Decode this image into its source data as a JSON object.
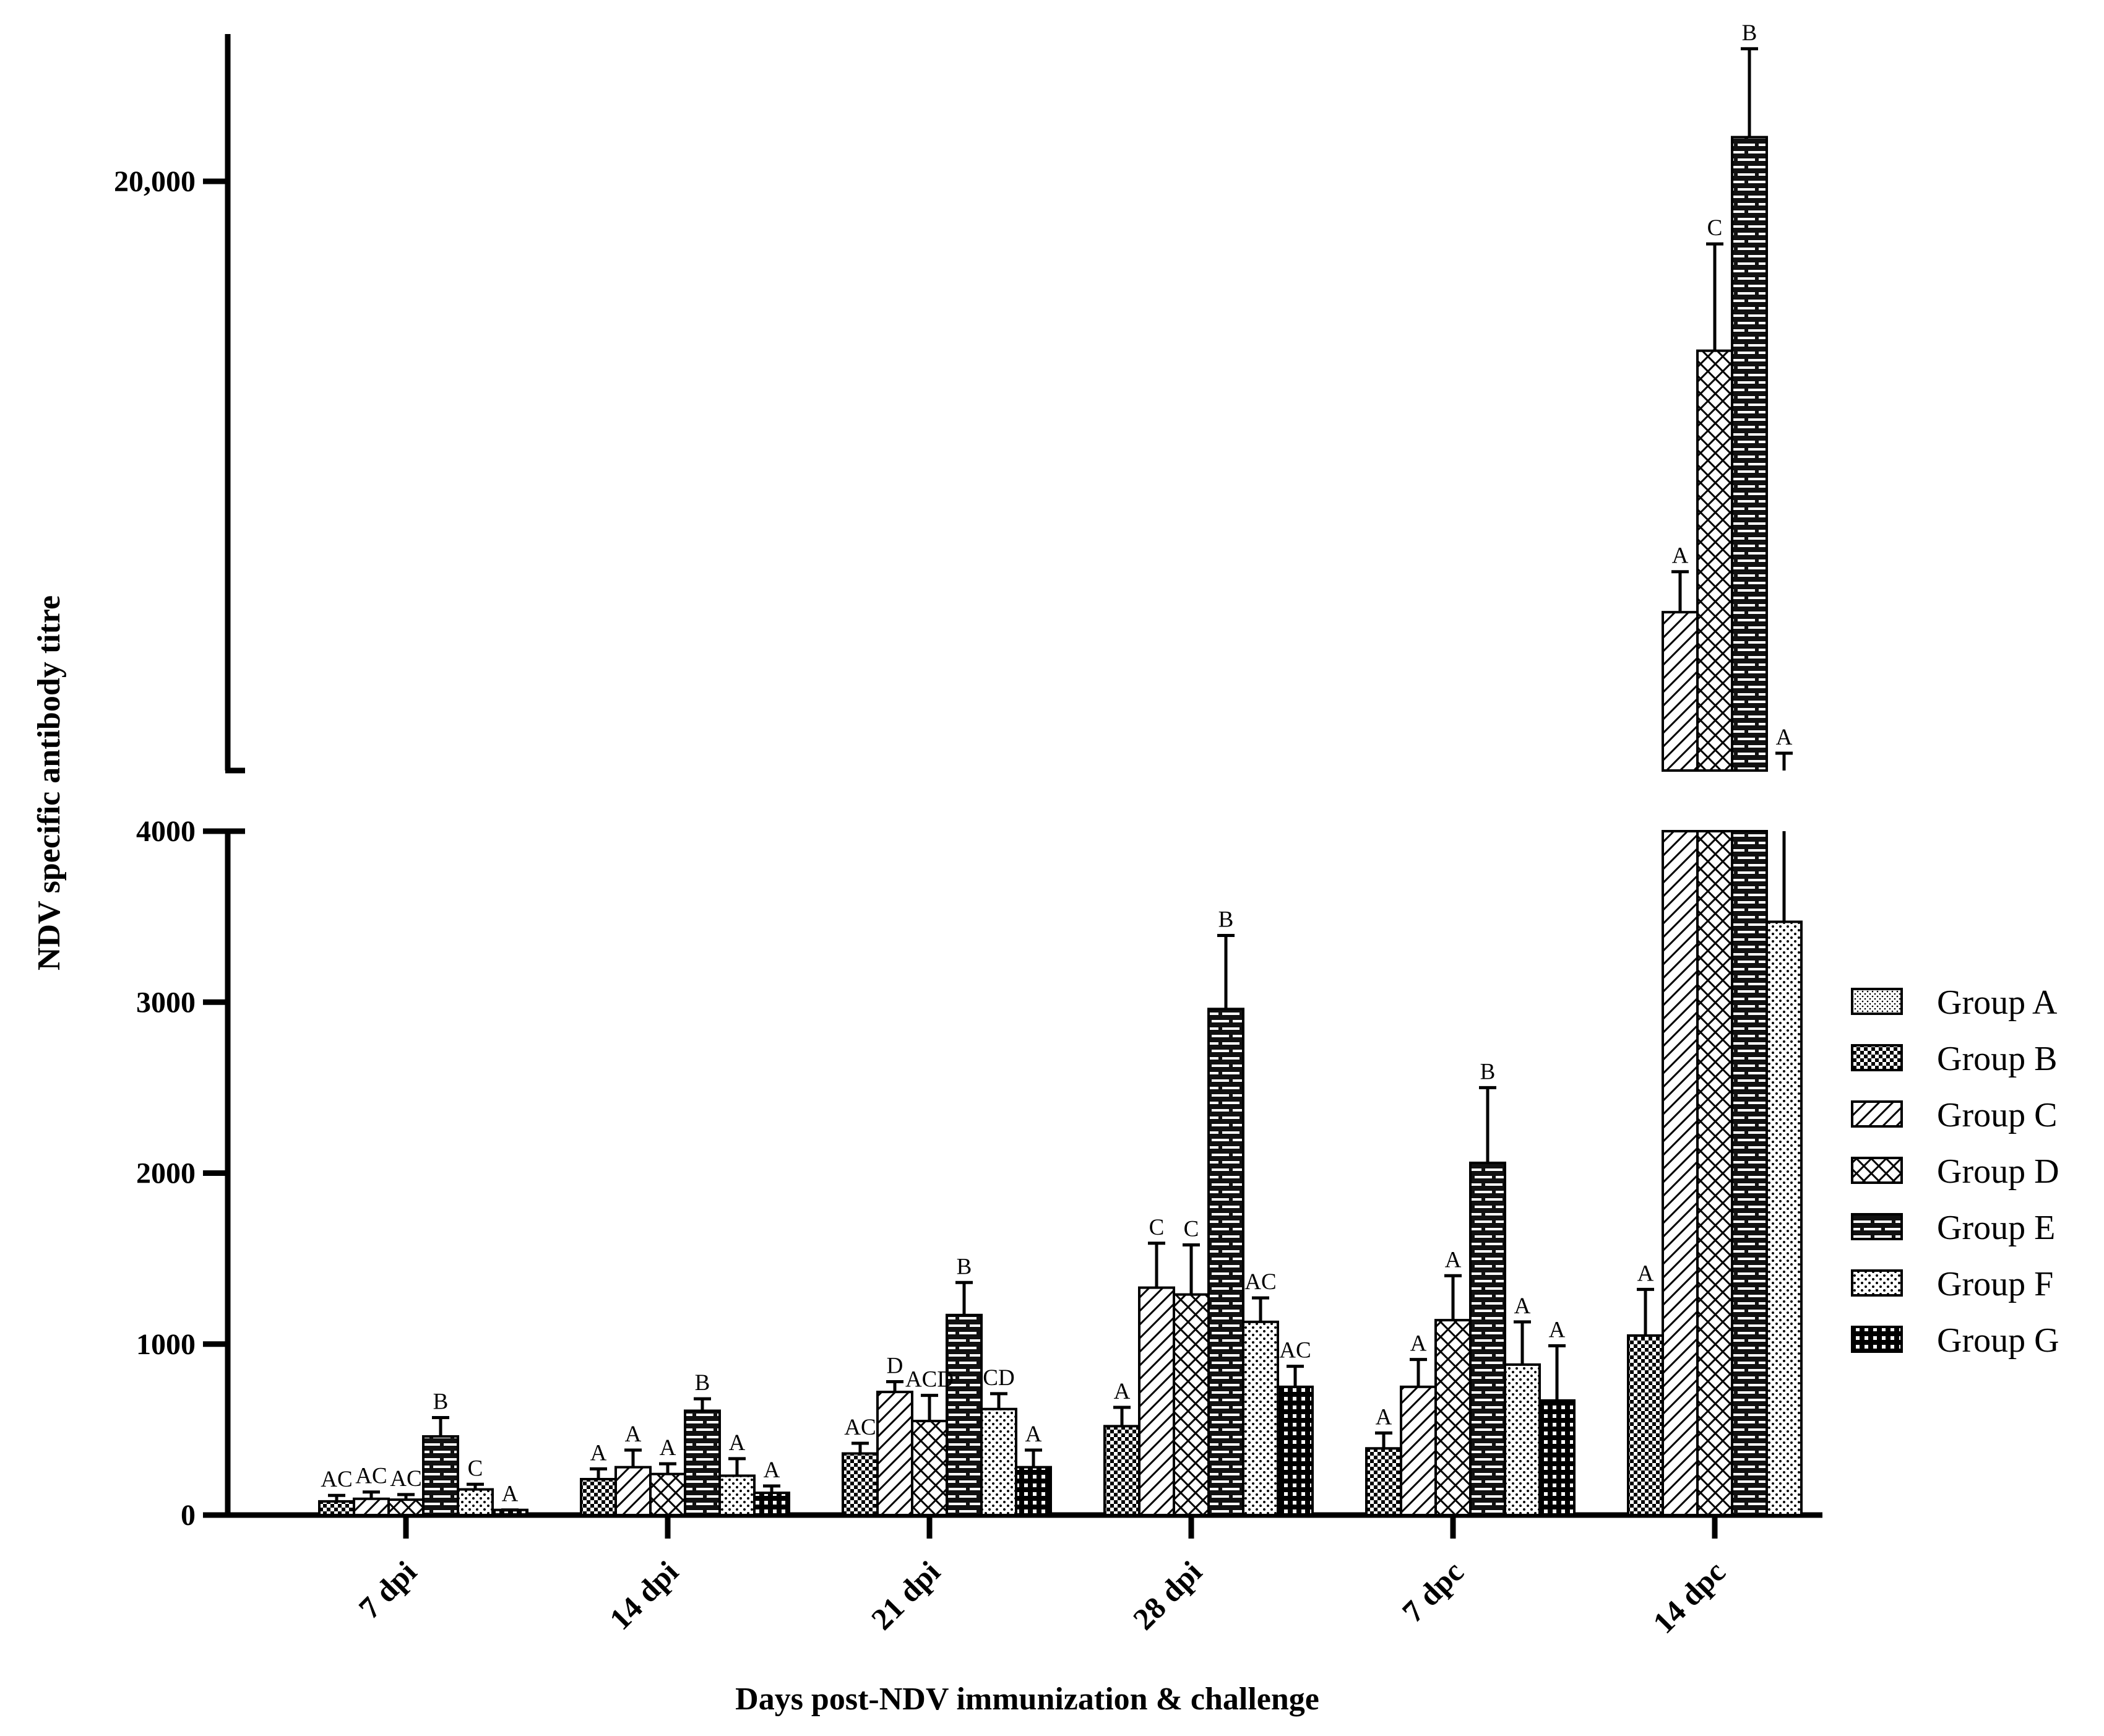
{
  "chart_data": {
    "type": "bar",
    "xlabel": "Days post-NDV immunization & challenge",
    "ylabel": "NDV specific antibody titre",
    "y_axis_broken": true,
    "y_segments": [
      {
        "range": [
          0,
          4000
        ],
        "ticks": [
          0,
          1000,
          2000,
          3000,
          4000
        ],
        "tick_labels": [
          "0",
          "1000",
          "2000",
          "3000",
          "4000"
        ]
      },
      {
        "range": [
          4000,
          24000
        ],
        "ticks": [
          20000
        ],
        "tick_labels": [
          "20,000"
        ]
      }
    ],
    "categories": [
      "7 dpi",
      "14 dpi",
      "21 dpi",
      "28 dpi",
      "7 dpc",
      "14 dpc"
    ],
    "legend_position": "right",
    "series": [
      {
        "name": "Group A",
        "pattern": "fine-dots",
        "values": [
          0,
          0,
          0,
          0,
          0,
          0
        ],
        "errors": [
          0,
          0,
          0,
          0,
          0,
          0
        ],
        "labels": [
          "",
          "",
          "",
          "",
          "",
          ""
        ]
      },
      {
        "name": "Group B",
        "pattern": "checker",
        "values": [
          80,
          210,
          360,
          520,
          390,
          1050
        ],
        "errors": [
          35,
          60,
          60,
          110,
          90,
          270
        ],
        "labels": [
          "AC",
          "A",
          "AC",
          "A",
          "A",
          "A"
        ]
      },
      {
        "name": "Group C",
        "pattern": "diagonal",
        "values": [
          95,
          280,
          720,
          1330,
          750,
          8300
        ],
        "errors": [
          40,
          100,
          60,
          260,
          160,
          1100
        ],
        "labels": [
          "AC",
          "A",
          "D",
          "C",
          "A",
          "A"
        ]
      },
      {
        "name": "Group D",
        "pattern": "crosshatch",
        "values": [
          90,
          240,
          550,
          1290,
          1140,
          15400
        ],
        "errors": [
          30,
          60,
          150,
          290,
          260,
          2900
        ],
        "labels": [
          "AC",
          "A",
          "ACD",
          "C",
          "A",
          "C"
        ]
      },
      {
        "name": "Group E",
        "pattern": "brick",
        "values": [
          460,
          610,
          1170,
          2960,
          2060,
          21200
        ],
        "errors": [
          110,
          70,
          190,
          430,
          440,
          2400
        ],
        "labels": [
          "B",
          "B",
          "B",
          "B",
          "B",
          "B"
        ]
      },
      {
        "name": "Group F",
        "pattern": "coarse-dots",
        "values": [
          150,
          230,
          620,
          1130,
          880,
          3470
        ],
        "errors": [
          30,
          100,
          90,
          140,
          250,
          1000
        ],
        "labels": [
          "C",
          "A",
          "CD",
          "AC",
          "A",
          "A"
        ]
      },
      {
        "name": "Group G",
        "pattern": "dark-grid",
        "values": [
          30,
          130,
          280,
          750,
          670,
          0
        ],
        "errors": [
          0,
          40,
          100,
          120,
          320,
          0
        ],
        "labels": [
          "A",
          "A",
          "A",
          "AC",
          "A",
          ""
        ]
      }
    ]
  }
}
